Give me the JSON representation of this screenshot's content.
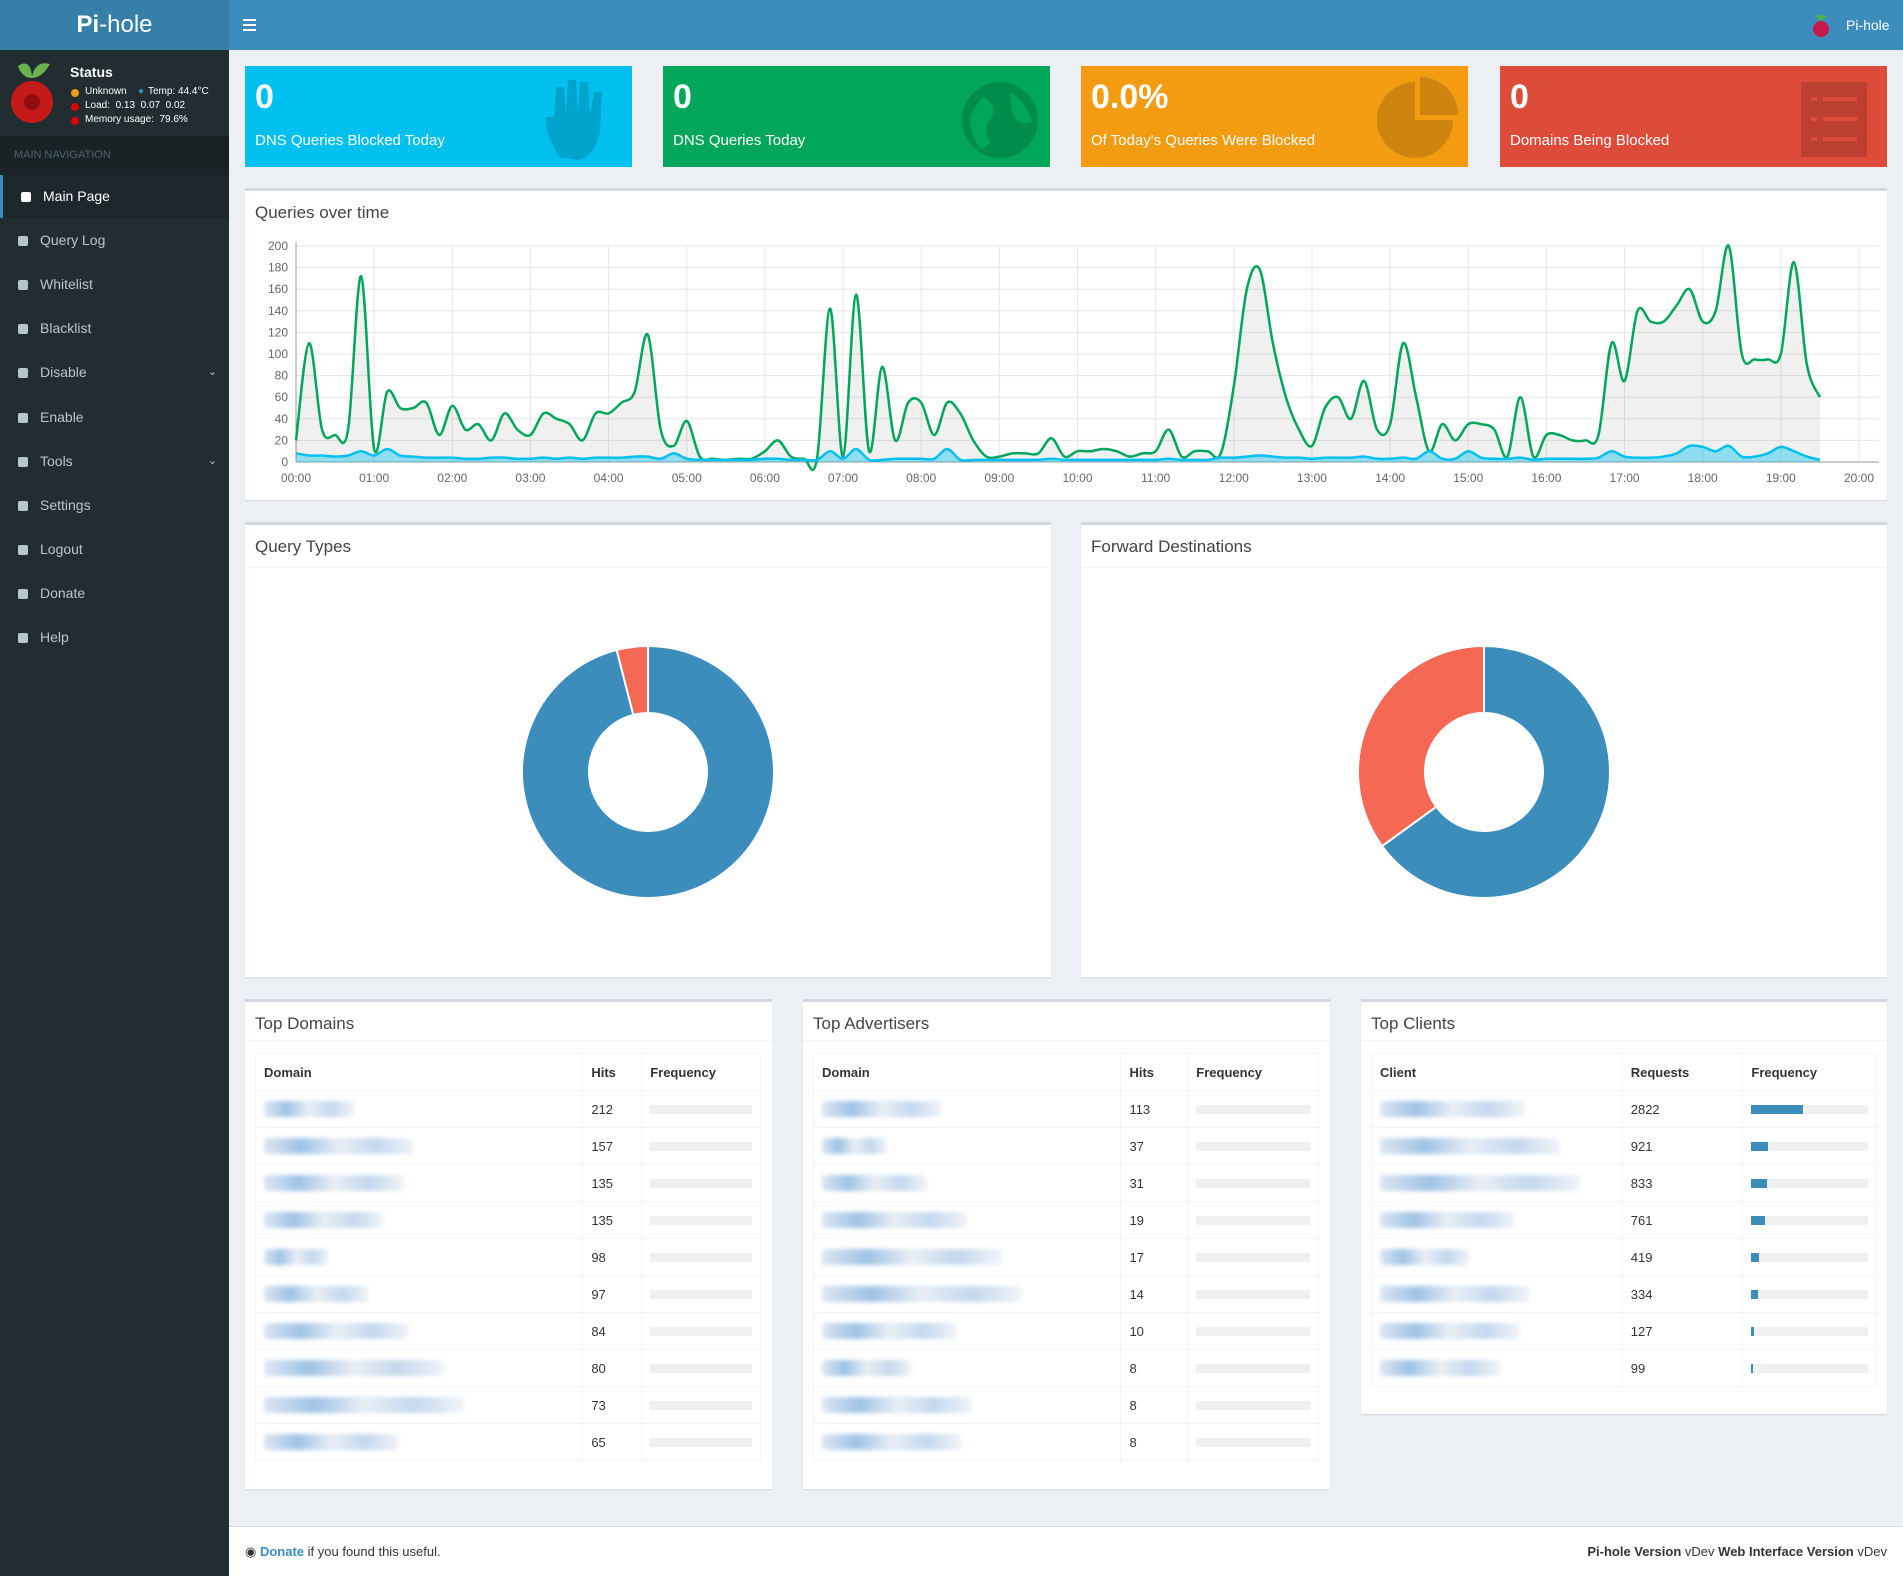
{
  "header": {
    "logo_bold": "Pi",
    "logo_rest": "-hole",
    "user": "Pi-hole"
  },
  "sidebar": {
    "status_title": "Status",
    "status": "Unknown",
    "temp": "Temp: 44.4°C",
    "load": "Load:  0.13  0.07  0.02",
    "memory": "Memory usage:  79.6%",
    "nav_header": "MAIN NAVIGATION",
    "nav": [
      "Main Page",
      "Query Log",
      "Whitelist",
      "Blacklist",
      "Disable",
      "Enable",
      "Tools",
      "Settings",
      "Logout",
      "Donate",
      "Help"
    ]
  },
  "stats": [
    {
      "value": "0",
      "label": "DNS Queries Blocked Today"
    },
    {
      "value": "0",
      "label": "DNS Queries Today"
    },
    {
      "value": "0.0%",
      "label": "Of Today's Queries Were Blocked"
    },
    {
      "value": "0",
      "label": "Domains Being Blocked"
    }
  ],
  "chart_data": [
    {
      "type": "line",
      "title": "Queries over time",
      "grid": true,
      "x": [
        "00:00",
        "00:10",
        "00:20",
        "00:30",
        "00:40",
        "00:50",
        "01:00",
        "01:10",
        "01:20",
        "01:30",
        "01:40",
        "01:50",
        "02:00",
        "02:10",
        "02:20",
        "02:30",
        "02:40",
        "02:50",
        "03:00",
        "03:10",
        "03:20",
        "03:30",
        "03:40",
        "03:50",
        "04:00",
        "04:10",
        "04:20",
        "04:30",
        "04:40",
        "04:50",
        "05:00",
        "05:10",
        "05:20",
        "05:30",
        "05:40",
        "05:50",
        "06:00",
        "06:10",
        "06:20",
        "06:30",
        "06:40",
        "06:50",
        "07:00",
        "07:10",
        "07:20",
        "07:30",
        "07:40",
        "07:50",
        "08:00",
        "08:10",
        "08:20",
        "08:30",
        "08:40",
        "08:50",
        "09:00",
        "09:10",
        "09:20",
        "09:30",
        "09:40",
        "09:50",
        "10:00",
        "10:10",
        "10:20",
        "10:30",
        "10:40",
        "10:50",
        "11:00",
        "11:10",
        "11:20",
        "11:30",
        "11:40",
        "11:50",
        "12:00",
        "12:10",
        "12:20",
        "12:30",
        "12:40",
        "12:50",
        "13:00",
        "13:10",
        "13:20",
        "13:30",
        "13:40",
        "13:50",
        "14:00",
        "14:10",
        "14:20",
        "14:30",
        "14:40",
        "14:50",
        "15:00",
        "15:10",
        "15:20",
        "15:30",
        "15:40",
        "15:50",
        "16:00",
        "16:10",
        "16:20",
        "16:30",
        "16:40",
        "16:50",
        "17:00",
        "17:10",
        "17:20",
        "17:30",
        "17:40",
        "17:50",
        "18:00",
        "18:10",
        "18:20",
        "18:30",
        "18:40",
        "18:50",
        "19:00",
        "19:10",
        "19:20",
        "19:30"
      ],
      "series": [
        {
          "color": "#00a65a",
          "values": [
            20,
            110,
            30,
            25,
            30,
            172,
            12,
            65,
            50,
            50,
            55,
            25,
            52,
            30,
            35,
            20,
            45,
            30,
            25,
            45,
            40,
            35,
            20,
            45,
            45,
            55,
            65,
            118,
            30,
            15,
            38,
            5,
            3,
            2,
            3,
            3,
            10,
            20,
            5,
            3,
            3,
            142,
            5,
            155,
            10,
            88,
            20,
            55,
            55,
            25,
            55,
            45,
            20,
            5,
            5,
            8,
            8,
            8,
            22,
            5,
            10,
            10,
            12,
            10,
            5,
            8,
            10,
            30,
            5,
            10,
            10,
            8,
            70,
            160,
            178,
            110,
            60,
            30,
            15,
            50,
            60,
            40,
            75,
            30,
            35,
            110,
            60,
            10,
            35,
            20,
            35,
            35,
            30,
            5,
            60,
            5,
            25,
            25,
            20,
            20,
            25,
            110,
            75,
            140,
            130,
            130,
            145,
            160,
            130,
            140,
            200,
            100,
            95,
            95,
            100,
            185,
            90,
            60
          ]
        },
        {
          "color": "#00c0ef",
          "values": [
            8,
            6,
            6,
            5,
            6,
            10,
            6,
            12,
            6,
            5,
            4,
            4,
            4,
            3,
            3,
            4,
            4,
            3,
            3,
            4,
            3,
            4,
            3,
            4,
            4,
            4,
            5,
            5,
            3,
            8,
            3,
            2,
            2,
            2,
            2,
            2,
            3,
            3,
            2,
            2,
            2,
            10,
            3,
            12,
            2,
            2,
            3,
            3,
            3,
            3,
            12,
            2,
            2,
            2,
            2,
            2,
            2,
            2,
            3,
            2,
            2,
            2,
            2,
            2,
            2,
            2,
            2,
            3,
            2,
            2,
            2,
            4,
            4,
            5,
            6,
            5,
            4,
            4,
            3,
            4,
            4,
            4,
            5,
            3,
            3,
            4,
            3,
            10,
            3,
            3,
            10,
            4,
            3,
            3,
            4,
            2,
            3,
            3,
            3,
            3,
            4,
            10,
            5,
            4,
            4,
            5,
            8,
            15,
            14,
            10,
            15,
            5,
            5,
            8,
            14,
            10,
            5,
            2
          ]
        }
      ],
      "xlim": [
        "00:00",
        "20:00"
      ],
      "xticks": [
        "00:00",
        "01:00",
        "02:00",
        "03:00",
        "04:00",
        "05:00",
        "06:00",
        "07:00",
        "08:00",
        "09:00",
        "10:00",
        "11:00",
        "12:00",
        "13:00",
        "14:00",
        "15:00",
        "16:00",
        "17:00",
        "18:00",
        "19:00",
        "20:00"
      ],
      "ylim": [
        0,
        200
      ],
      "yticks": [
        0,
        20,
        40,
        60,
        80,
        100,
        120,
        140,
        160,
        180,
        200
      ]
    },
    {
      "type": "pie",
      "title": "Query Types",
      "values": [
        96,
        4
      ],
      "colors": [
        "#3c8dbc",
        "#f56954"
      ]
    },
    {
      "type": "pie",
      "title": "Forward Destinations",
      "values": [
        65,
        35
      ],
      "colors": [
        "#3c8dbc",
        "#f56954"
      ]
    }
  ],
  "tables": [
    {
      "title": "Top Domains",
      "columns": [
        "Domain",
        "Hits",
        "Frequency"
      ],
      "values": [
        212,
        157,
        135,
        135,
        98,
        97,
        84,
        80,
        73,
        65
      ]
    },
    {
      "title": "Top Advertisers",
      "columns": [
        "Domain",
        "Hits",
        "Frequency"
      ],
      "values": [
        113,
        37,
        31,
        19,
        17,
        14,
        10,
        8,
        8,
        8
      ]
    },
    {
      "title": "Top Clients",
      "columns": [
        "Client",
        "Requests",
        "Frequency"
      ],
      "values": [
        2822,
        921,
        833,
        761,
        419,
        334,
        127,
        99
      ],
      "bar_color": "#3c8dbc"
    }
  ],
  "footer": {
    "donate": "Donate",
    "donate_rest": " if you found this useful.",
    "core_label": "Pi-hole Version",
    "core_version": "vDev",
    "web_label": "Web Interface Version",
    "web_version": "vDev"
  }
}
